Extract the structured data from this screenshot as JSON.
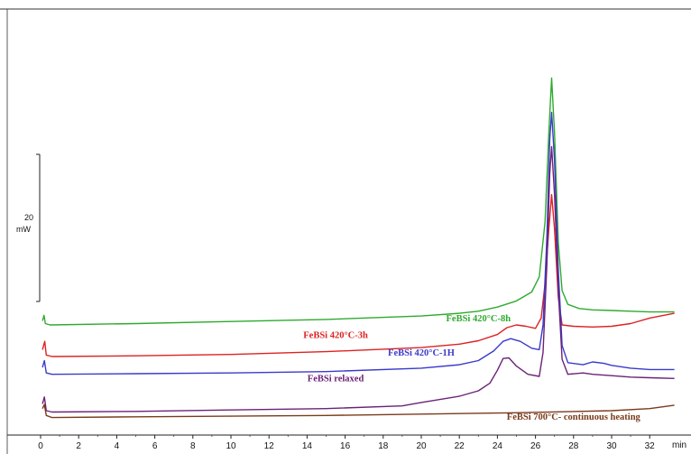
{
  "chart_data": {
    "type": "line",
    "title": "",
    "xlabel": "",
    "ylabel": "",
    "x_unit": "min",
    "xlim": [
      0,
      33.5
    ],
    "x_ticks": [
      0,
      2,
      4,
      6,
      8,
      10,
      12,
      14,
      16,
      18,
      20,
      22,
      24,
      26,
      28,
      30,
      32
    ],
    "y_scale_bar": {
      "value": "20",
      "unit": "mW"
    },
    "grid": false,
    "legend": "inline labels",
    "series": [
      {
        "name": "FeBSi 420°C-8h",
        "color": "#2eaa2e",
        "label_at": [
          23.0,
          0.5
        ],
        "points": [
          [
            0.1,
            0.6
          ],
          [
            0.18,
            1.4
          ],
          [
            0.25,
            0.2
          ],
          [
            0.5,
            0
          ],
          [
            5,
            0.2
          ],
          [
            10,
            0.5
          ],
          [
            15,
            0.8
          ],
          [
            20,
            1.3
          ],
          [
            22,
            1.7
          ],
          [
            23,
            2.0
          ],
          [
            24,
            2.6
          ],
          [
            25,
            3.5
          ],
          [
            25.8,
            4.8
          ],
          [
            26.2,
            7
          ],
          [
            26.5,
            15
          ],
          [
            26.7,
            28
          ],
          [
            26.85,
            36
          ],
          [
            27.0,
            28
          ],
          [
            27.2,
            12
          ],
          [
            27.4,
            5
          ],
          [
            27.7,
            3
          ],
          [
            28.3,
            2.4
          ],
          [
            29,
            2.2
          ],
          [
            30,
            2.1
          ],
          [
            31,
            2.0
          ],
          [
            32,
            1.9
          ],
          [
            33.3,
            1.9
          ]
        ]
      },
      {
        "name": "FeBSi 420°C-3h",
        "color": "#dd2222",
        "label_at": [
          15.5,
          -1.9
        ],
        "points": [
          [
            0.1,
            -3.6
          ],
          [
            0.22,
            -2.4
          ],
          [
            0.3,
            -4.4
          ],
          [
            0.6,
            -4.6
          ],
          [
            5,
            -4.5
          ],
          [
            10,
            -4.3
          ],
          [
            15,
            -3.9
          ],
          [
            20,
            -3.3
          ],
          [
            22,
            -2.8
          ],
          [
            23,
            -2.3
          ],
          [
            24,
            -1.4
          ],
          [
            24.5,
            -0.4
          ],
          [
            25,
            0
          ],
          [
            25.5,
            -0.2
          ],
          [
            26.0,
            -0.5
          ],
          [
            26.3,
            1
          ],
          [
            26.5,
            6
          ],
          [
            26.7,
            14
          ],
          [
            26.85,
            19
          ],
          [
            27.0,
            14
          ],
          [
            27.2,
            4
          ],
          [
            27.4,
            0
          ],
          [
            28,
            -0.2
          ],
          [
            29,
            -0.3
          ],
          [
            30,
            -0.2
          ],
          [
            31,
            0.2
          ],
          [
            32,
            1.0
          ],
          [
            33.3,
            1.7
          ]
        ]
      },
      {
        "name": "FeBSi 420°C-1H",
        "color": "#3a3acc",
        "label_at": [
          20.0,
          -4.5
        ],
        "points": [
          [
            0.1,
            -6.2
          ],
          [
            0.2,
            -5.2
          ],
          [
            0.3,
            -7.0
          ],
          [
            0.6,
            -7.2
          ],
          [
            5,
            -7.1
          ],
          [
            10,
            -7.0
          ],
          [
            15,
            -6.8
          ],
          [
            20,
            -6.3
          ],
          [
            22,
            -5.8
          ],
          [
            23,
            -5.2
          ],
          [
            23.8,
            -3.8
          ],
          [
            24.3,
            -2.4
          ],
          [
            24.7,
            -2.0
          ],
          [
            25.2,
            -2.4
          ],
          [
            25.8,
            -3.4
          ],
          [
            26.2,
            -3.6
          ],
          [
            26.4,
            0
          ],
          [
            26.6,
            13
          ],
          [
            26.75,
            27
          ],
          [
            26.85,
            31
          ],
          [
            27.0,
            24
          ],
          [
            27.2,
            8
          ],
          [
            27.4,
            -3
          ],
          [
            27.7,
            -5.5
          ],
          [
            28.5,
            -5.8
          ],
          [
            29,
            -5.4
          ],
          [
            29.6,
            -5.6
          ],
          [
            30,
            -5.9
          ],
          [
            31,
            -6.3
          ],
          [
            32,
            -6.5
          ],
          [
            33.3,
            -6.5
          ]
        ]
      },
      {
        "name": "FeBSi relaxed",
        "color": "#6b2277",
        "label_at": [
          15.5,
          -8.2
        ],
        "points": [
          [
            0.1,
            -11.5
          ],
          [
            0.2,
            -10.5
          ],
          [
            0.3,
            -12.5
          ],
          [
            0.6,
            -12.7
          ],
          [
            5,
            -12.6
          ],
          [
            10,
            -12.4
          ],
          [
            15,
            -12.2
          ],
          [
            19,
            -11.8
          ],
          [
            20,
            -11.3
          ],
          [
            22,
            -10.4
          ],
          [
            23,
            -9.6
          ],
          [
            23.6,
            -8.5
          ],
          [
            24.0,
            -6.6
          ],
          [
            24.3,
            -4.9
          ],
          [
            24.6,
            -4.8
          ],
          [
            25.0,
            -6.0
          ],
          [
            25.6,
            -7.2
          ],
          [
            26.2,
            -7.5
          ],
          [
            26.4,
            -4
          ],
          [
            26.6,
            9
          ],
          [
            26.75,
            22
          ],
          [
            26.85,
            26
          ],
          [
            27.0,
            19
          ],
          [
            27.2,
            5
          ],
          [
            27.4,
            -5
          ],
          [
            27.7,
            -7.2
          ],
          [
            28.5,
            -7.0
          ],
          [
            29,
            -7.2
          ],
          [
            30,
            -7.4
          ],
          [
            31,
            -7.6
          ],
          [
            32,
            -7.7
          ],
          [
            33.3,
            -7.8
          ]
        ]
      },
      {
        "name": "FeBSi 700°C- continuous heating",
        "color": "#7a3b1c",
        "label_at": [
          28.0,
          -13.8
        ],
        "points": [
          [
            0.1,
            -12.2
          ],
          [
            0.2,
            -11.6
          ],
          [
            0.3,
            -13.2
          ],
          [
            0.6,
            -13.5
          ],
          [
            5,
            -13.4
          ],
          [
            10,
            -13.3
          ],
          [
            15,
            -13.2
          ],
          [
            20,
            -13.0
          ],
          [
            25,
            -12.8
          ],
          [
            30,
            -12.5
          ],
          [
            32,
            -12.2
          ],
          [
            33.3,
            -11.7
          ]
        ]
      }
    ]
  }
}
